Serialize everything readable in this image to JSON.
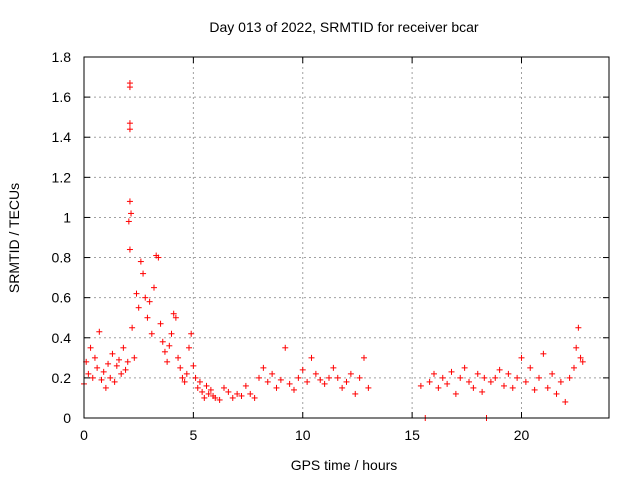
{
  "chart_data": {
    "type": "scatter",
    "title": "Day 013 of 2022, SRMTID for receiver bcar",
    "xlabel": "GPS time / hours",
    "ylabel": "SRMTID / TECUs",
    "xlim": [
      0,
      24
    ],
    "ylim": [
      0,
      1.8
    ],
    "xticks": [
      0,
      5,
      10,
      15,
      20
    ],
    "xtick_labels": [
      "0",
      "5",
      "10",
      "15",
      "20"
    ],
    "yticks": [
      0,
      0.2,
      0.4,
      0.6,
      0.8,
      1,
      1.2,
      1.4,
      1.6,
      1.8
    ],
    "ytick_labels": [
      "0",
      "0.2",
      "0.4",
      "0.6",
      "0.8",
      "1",
      "1.2",
      "1.4",
      "1.6",
      "1.8"
    ],
    "grid": true,
    "marker": "+",
    "marker_color": "#ff0000",
    "series": [
      {
        "name": "SRMTID",
        "x": [
          0.0,
          0.1,
          0.2,
          0.3,
          0.4,
          0.5,
          0.6,
          0.7,
          0.8,
          0.9,
          1.0,
          1.1,
          1.2,
          1.3,
          1.4,
          1.5,
          1.6,
          1.7,
          1.8,
          1.9,
          2.0,
          2.05,
          2.1,
          2.1,
          2.1,
          2.1,
          2.1,
          2.1,
          2.15,
          2.2,
          2.3,
          2.4,
          2.5,
          2.6,
          2.7,
          2.8,
          2.9,
          3.0,
          3.1,
          3.2,
          3.3,
          3.4,
          3.5,
          3.6,
          3.7,
          3.8,
          3.9,
          4.0,
          4.1,
          4.2,
          4.3,
          4.4,
          4.5,
          4.6,
          4.7,
          4.8,
          4.9,
          5.0,
          5.1,
          5.2,
          5.3,
          5.4,
          5.5,
          5.6,
          5.7,
          5.8,
          5.9,
          6.0,
          6.2,
          6.4,
          6.6,
          6.8,
          7.0,
          7.2,
          7.4,
          7.6,
          7.8,
          8.0,
          8.2,
          8.4,
          8.6,
          8.8,
          9.0,
          9.2,
          9.4,
          9.6,
          9.8,
          10.0,
          10.2,
          10.4,
          10.6,
          10.8,
          11.0,
          11.2,
          11.4,
          11.6,
          11.8,
          12.0,
          12.2,
          12.4,
          12.6,
          12.8,
          13.0,
          15.4,
          15.6,
          15.8,
          16.0,
          16.2,
          16.4,
          16.6,
          16.8,
          17.0,
          17.2,
          17.4,
          17.6,
          17.8,
          18.0,
          18.2,
          18.3,
          18.4,
          18.6,
          18.8,
          19.0,
          19.2,
          19.4,
          19.6,
          19.8,
          20.0,
          20.2,
          20.4,
          20.6,
          20.8,
          21.0,
          21.2,
          21.4,
          21.6,
          21.8,
          22.0,
          22.2,
          22.4,
          22.5,
          22.6,
          22.7,
          22.8
        ],
        "y": [
          0.17,
          0.28,
          0.22,
          0.35,
          0.2,
          0.3,
          0.25,
          0.43,
          0.19,
          0.23,
          0.15,
          0.27,
          0.2,
          0.32,
          0.18,
          0.26,
          0.29,
          0.22,
          0.35,
          0.24,
          0.28,
          0.98,
          1.65,
          1.67,
          1.44,
          1.47,
          1.08,
          0.84,
          1.02,
          0.45,
          0.3,
          0.62,
          0.55,
          0.78,
          0.72,
          0.6,
          0.5,
          0.58,
          0.42,
          0.65,
          0.81,
          0.8,
          0.47,
          0.38,
          0.33,
          0.28,
          0.36,
          0.42,
          0.52,
          0.5,
          0.3,
          0.25,
          0.2,
          0.18,
          0.22,
          0.35,
          0.42,
          0.26,
          0.2,
          0.15,
          0.18,
          0.13,
          0.1,
          0.16,
          0.12,
          0.14,
          0.11,
          0.1,
          0.09,
          0.15,
          0.13,
          0.1,
          0.12,
          0.11,
          0.16,
          0.12,
          0.1,
          0.2,
          0.25,
          0.18,
          0.22,
          0.15,
          0.19,
          0.35,
          0.17,
          0.14,
          0.2,
          0.24,
          0.18,
          0.3,
          0.22,
          0.19,
          0.17,
          0.2,
          0.25,
          0.2,
          0.15,
          0.18,
          0.22,
          0.12,
          0.2,
          0.3,
          0.15,
          0.16,
          0.0,
          0.18,
          0.22,
          0.15,
          0.2,
          0.17,
          0.23,
          0.12,
          0.2,
          0.25,
          0.18,
          0.15,
          0.22,
          0.13,
          0.2,
          0.0,
          0.18,
          0.2,
          0.24,
          0.16,
          0.22,
          0.15,
          0.2,
          0.3,
          0.18,
          0.25,
          0.14,
          0.2,
          0.32,
          0.15,
          0.22,
          0.12,
          0.18,
          0.08,
          0.2,
          0.25,
          0.35,
          0.45,
          0.3,
          0.28
        ]
      }
    ]
  }
}
